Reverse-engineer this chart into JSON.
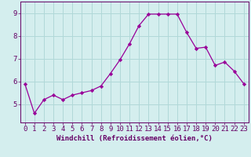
{
  "x": [
    0,
    1,
    2,
    3,
    4,
    5,
    6,
    7,
    8,
    9,
    10,
    11,
    12,
    13,
    14,
    15,
    16,
    17,
    18,
    19,
    20,
    21,
    22,
    23
  ],
  "y": [
    5.9,
    4.6,
    5.2,
    5.4,
    5.2,
    5.4,
    5.5,
    5.6,
    5.8,
    6.35,
    6.95,
    7.65,
    8.45,
    8.95,
    8.95,
    8.95,
    8.95,
    8.15,
    7.45,
    7.5,
    6.7,
    6.85,
    6.45,
    5.9
  ],
  "line_color": "#990099",
  "marker": "D",
  "marker_size": 2.2,
  "bg_color": "#d4eeee",
  "grid_color": "#b0d8d8",
  "xlabel": "Windchill (Refroidissement éolien,°C)",
  "xlim": [
    -0.5,
    23.5
  ],
  "ylim": [
    4.2,
    9.5
  ],
  "yticks": [
    5,
    6,
    7,
    8,
    9
  ],
  "xticks": [
    0,
    1,
    2,
    3,
    4,
    5,
    6,
    7,
    8,
    9,
    10,
    11,
    12,
    13,
    14,
    15,
    16,
    17,
    18,
    19,
    20,
    21,
    22,
    23
  ],
  "tick_color": "#660066",
  "label_color": "#660066",
  "font_size_xlabel": 6.5,
  "font_size_ticks": 6.5,
  "line_width": 0.9
}
